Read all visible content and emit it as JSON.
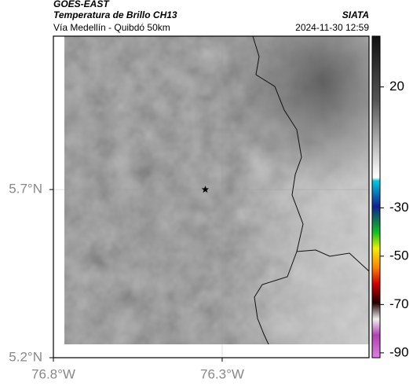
{
  "header": {
    "title": "GOES-EAST",
    "subtitle": "Temperatura de Brillo CH13",
    "location": "Vía Medellín - Quibdó 50km",
    "source": "SIATA",
    "timestamp": "2024-11-30 12:59"
  },
  "map": {
    "xlim": [
      -76.8,
      -75.865
    ],
    "ylim": [
      5.2,
      6.156
    ],
    "xticks": [
      {
        "value": -76.8,
        "label": "76.8°W"
      },
      {
        "value": -76.3,
        "label": "76.3°W"
      }
    ],
    "yticks": [
      {
        "value": 5.2,
        "label": "5.2°N"
      },
      {
        "value": 5.7,
        "label": "5.7°N"
      }
    ],
    "grid": true,
    "marker": {
      "lon": -76.35,
      "lat": 5.7
    }
  },
  "colorbar": {
    "lim": [
      -92,
      41
    ],
    "ticks": [
      20,
      -30,
      -50,
      -70,
      -90
    ]
  }
}
